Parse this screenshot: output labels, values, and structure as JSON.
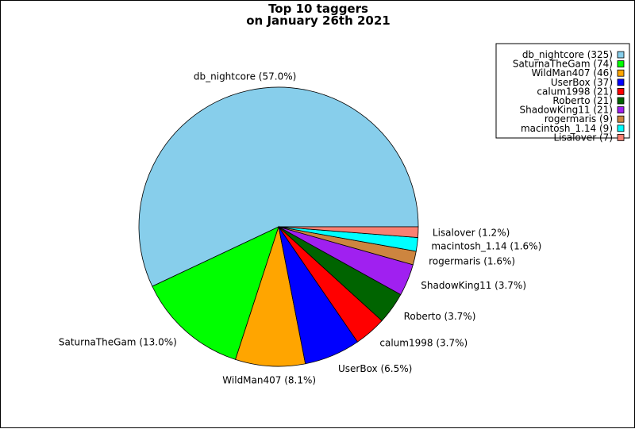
{
  "chart_data": {
    "type": "pie",
    "title_line1": "Top 10 taggers",
    "title_line2": "on January 26th 2021",
    "legend_placement": "top-right",
    "slices": [
      {
        "name": "db_nightcore",
        "value": 325,
        "pct_label": "db_nightcore (57.0%)",
        "legend_label": "db_nightcore (325)",
        "color": "#87ceeb"
      },
      {
        "name": "SaturnaTheGam",
        "value": 74,
        "pct_label": "SaturnaTheGam (13.0%)",
        "legend_label": "SaturnaTheGam (74)",
        "color": "#00ff00"
      },
      {
        "name": "WildMan407",
        "value": 46,
        "pct_label": "WildMan407 (8.1%)",
        "legend_label": "WildMan407 (46)",
        "color": "#ffa500"
      },
      {
        "name": "UserBox",
        "value": 37,
        "pct_label": "UserBox (6.5%)",
        "legend_label": "UserBox (37)",
        "color": "#0000ff"
      },
      {
        "name": "calum1998",
        "value": 21,
        "pct_label": "calum1998 (3.7%)",
        "legend_label": "calum1998 (21)",
        "color": "#ff0000"
      },
      {
        "name": "Roberto",
        "value": 21,
        "pct_label": "Roberto (3.7%)",
        "legend_label": "Roberto (21)",
        "color": "#006400"
      },
      {
        "name": "ShadowKing11",
        "value": 21,
        "pct_label": "ShadowKing11 (3.7%)",
        "legend_label": "ShadowKing11 (21)",
        "color": "#a020f0"
      },
      {
        "name": "rogermaris",
        "value": 9,
        "pct_label": "rogermaris (1.6%)",
        "legend_label": "rogermaris (9)",
        "color": "#cd853f"
      },
      {
        "name": "macintosh_1.14",
        "value": 9,
        "pct_label": "macintosh_1.14 (1.6%)",
        "legend_label": "macintosh_1.14 (9)",
        "color": "#00ffff"
      },
      {
        "name": "Lisalover",
        "value": 7,
        "pct_label": "Lisalover (1.2%)",
        "legend_label": "Lisalover (7)",
        "color": "#fa8072"
      }
    ]
  }
}
